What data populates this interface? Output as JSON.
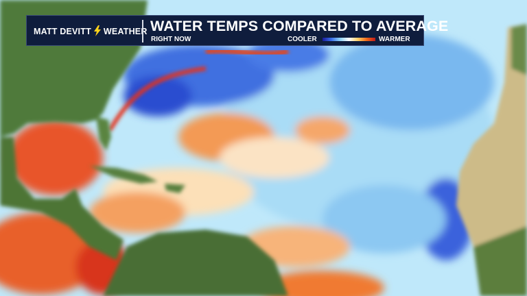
{
  "banner": {
    "brand_name": "MATT DEVITT",
    "brand_suffix": "WEATHER",
    "title": "WATER TEMPS COMPARED TO AVERAGE",
    "subtitle": "RIGHT NOW",
    "legend_low": "COOLER",
    "legend_high": "WARMER"
  }
}
